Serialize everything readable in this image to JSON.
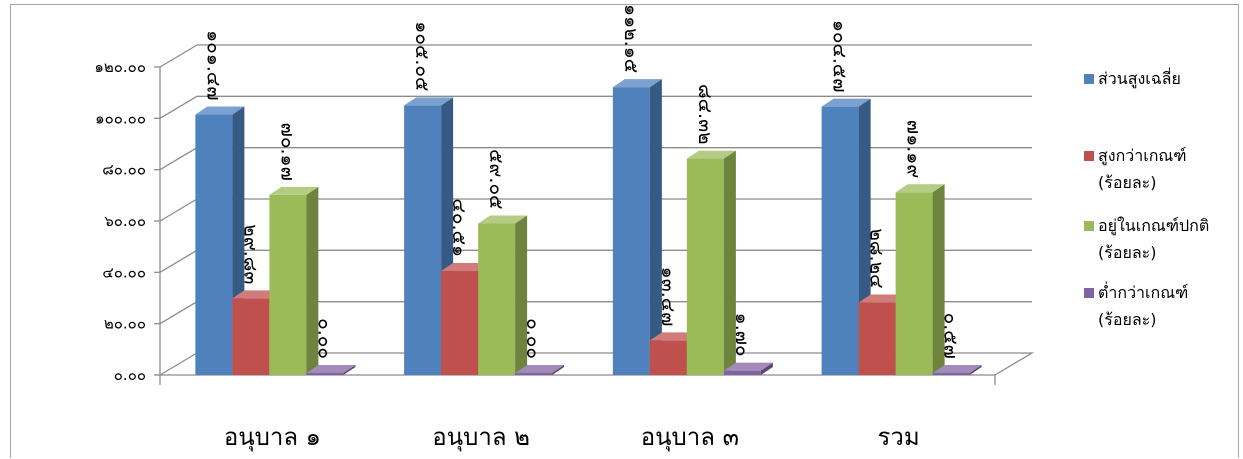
{
  "chart_data": {
    "type": "bar",
    "title": "",
    "xlabel": "",
    "ylabel": "",
    "ylim": [
      0,
      120
    ],
    "yticks": [
      0,
      20,
      40,
      60,
      80,
      100,
      120
    ],
    "ytick_labels": [
      "๐.๐๐",
      "๒๐.๐๐",
      "๔๐.๐๐",
      "๖๐.๐๐",
      "๘๐.๐๐",
      "๑๐๐.๐๐",
      "๑๒๐.๐๐"
    ],
    "categories": [
      "อนุบาล  ๑",
      "อนุบาล ๒",
      "อนุบาล ๓",
      "รวม"
    ],
    "style": "3d-clustered-column",
    "grid": true,
    "legend_position": "right",
    "series": [
      {
        "name_lines": [
          "ส่วนสูงเฉลี่ย"
        ],
        "color": "#4f81bd",
        "values": [
          101.47,
          105.05,
          112.15,
          104.57
        ],
        "labels": [
          "๑๐๑.๔๗",
          "๑๐๕.๐๕",
          "๑๑๒.๑๕",
          "๑๐๔.๕๗"
        ]
      },
      {
        "name_lines": [
          "สูงกว่าเกณฑ์",
          "(ร้อยละ)"
        ],
        "color": "#c0504d",
        "values": [
          29.83,
          40.51,
          13.47,
          28.24
        ],
        "labels": [
          "๒๙.๘๓",
          "๔๐.๕๑",
          "๑๓.๔๗",
          "๒๘.๒๔"
        ]
      },
      {
        "name_lines": [
          "อยู่ในเกณฑ์ปกติ",
          "(ร้อยละ)"
        ],
        "color": "#9bbb59",
        "values": [
          70.17,
          59.05,
          84.32,
          71.19
        ],
        "labels": [
          "๗๐.๑๗",
          "๕๙.๐๕",
          "๘๔.๓๒",
          "๗๑.๑๙"
        ]
      },
      {
        "name_lines": [
          "ต่ำกว่าเกณฑ์",
          "(ร้อยละ)"
        ],
        "color": "#8064a2",
        "values": [
          0.0,
          0.0,
          1.7,
          0.57
        ],
        "labels": [
          "๐.๐๐",
          "๐.๐๐",
          "๑.๗๐",
          "๐.๕๗"
        ]
      }
    ]
  }
}
